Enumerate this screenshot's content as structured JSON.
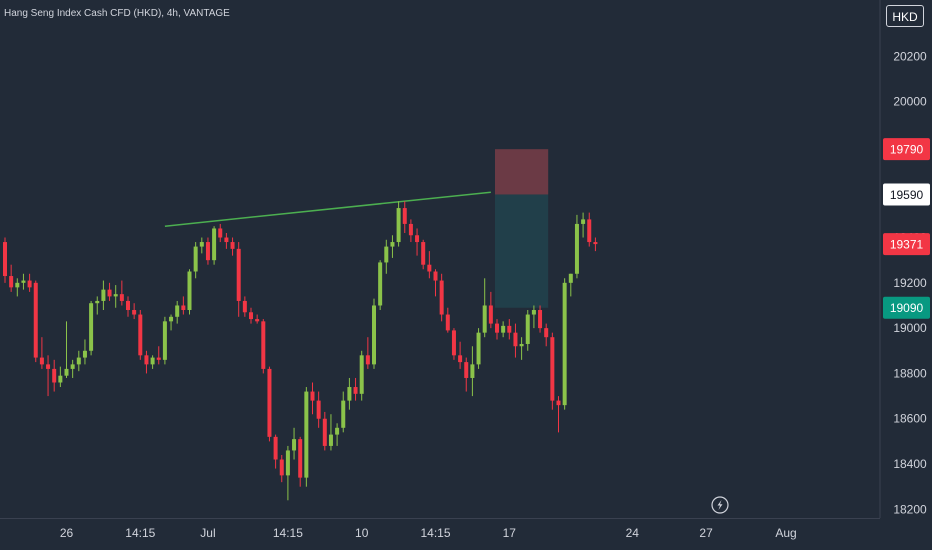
{
  "header": {
    "title": "Hang Seng Index Cash CFD (HKD), 4h, VANTAGE",
    "currency": "HKD"
  },
  "chart_data": {
    "type": "candlestick",
    "ylim": [
      18100,
      20400
    ],
    "y_ticks": [
      18200,
      18400,
      18600,
      18800,
      19000,
      19200,
      19400,
      19600,
      19800,
      20000,
      20200
    ],
    "x_ticks": [
      {
        "label": "26",
        "bar": 10
      },
      {
        "label": "14:15",
        "bar": 22
      },
      {
        "label": "Jul",
        "bar": 33
      },
      {
        "label": "14:15",
        "bar": 46
      },
      {
        "label": "10",
        "bar": 58
      },
      {
        "label": "14:15",
        "bar": 70
      },
      {
        "label": "17",
        "bar": 82
      },
      {
        "label": "24",
        "bar": 102
      },
      {
        "label": "27",
        "bar": 114
      },
      {
        "label": "Aug",
        "bar": 127
      }
    ],
    "candles": [
      [
        19380,
        19400,
        19200,
        19230
      ],
      [
        19230,
        19280,
        19160,
        19180
      ],
      [
        19180,
        19220,
        19140,
        19200
      ],
      [
        19200,
        19240,
        19170,
        19210
      ],
      [
        19210,
        19240,
        19160,
        19180
      ],
      [
        19200,
        19210,
        18850,
        18870
      ],
      [
        18870,
        18960,
        18820,
        18840
      ],
      [
        18840,
        18880,
        18700,
        18820
      ],
      [
        18820,
        18860,
        18720,
        18760
      ],
      [
        18760,
        18830,
        18740,
        18790
      ],
      [
        18790,
        19030,
        18780,
        18820
      ],
      [
        18820,
        18860,
        18780,
        18840
      ],
      [
        18840,
        18900,
        18810,
        18870
      ],
      [
        18870,
        18950,
        18840,
        18900
      ],
      [
        18900,
        19120,
        18880,
        19110
      ],
      [
        19110,
        19140,
        19060,
        19120
      ],
      [
        19120,
        19210,
        19080,
        19170
      ],
      [
        19170,
        19200,
        19120,
        19140
      ],
      [
        19140,
        19190,
        19090,
        19150
      ],
      [
        19150,
        19210,
        19100,
        19120
      ],
      [
        19120,
        19140,
        19050,
        19080
      ],
      [
        19080,
        19110,
        19040,
        19060
      ],
      [
        19060,
        19080,
        18860,
        18880
      ],
      [
        18880,
        18900,
        18800,
        18840
      ],
      [
        18840,
        18880,
        18820,
        18870
      ],
      [
        18870,
        18920,
        18840,
        18860
      ],
      [
        18860,
        19050,
        18840,
        19030
      ],
      [
        19030,
        19060,
        18990,
        19050
      ],
      [
        19050,
        19120,
        19020,
        19100
      ],
      [
        19100,
        19140,
        19060,
        19080
      ],
      [
        19080,
        19260,
        19060,
        19250
      ],
      [
        19250,
        19380,
        19220,
        19360
      ],
      [
        19360,
        19400,
        19330,
        19380
      ],
      [
        19380,
        19400,
        19280,
        19300
      ],
      [
        19300,
        19450,
        19280,
        19440
      ],
      [
        19440,
        19460,
        19380,
        19400
      ],
      [
        19400,
        19420,
        19350,
        19380
      ],
      [
        19380,
        19400,
        19320,
        19350
      ],
      [
        19350,
        19380,
        19050,
        19120
      ],
      [
        19120,
        19140,
        19050,
        19070
      ],
      [
        19070,
        19090,
        19020,
        19040
      ],
      [
        19040,
        19060,
        19020,
        19030
      ],
      [
        19030,
        19040,
        18800,
        18820
      ],
      [
        18820,
        18830,
        18500,
        18520
      ],
      [
        18520,
        18530,
        18380,
        18420
      ],
      [
        18420,
        18440,
        18320,
        18350
      ],
      [
        18350,
        18480,
        18240,
        18460
      ],
      [
        18460,
        18560,
        18420,
        18510
      ],
      [
        18510,
        18520,
        18300,
        18340
      ],
      [
        18340,
        18740,
        18300,
        18720
      ],
      [
        18720,
        18760,
        18620,
        18680
      ],
      [
        18680,
        18720,
        18560,
        18600
      ],
      [
        18600,
        18630,
        18460,
        18480
      ],
      [
        18480,
        18620,
        18460,
        18530
      ],
      [
        18530,
        18580,
        18480,
        18560
      ],
      [
        18560,
        18720,
        18540,
        18680
      ],
      [
        18680,
        18780,
        18640,
        18740
      ],
      [
        18740,
        18780,
        18680,
        18710
      ],
      [
        18710,
        18900,
        18680,
        18880
      ],
      [
        18880,
        18960,
        18820,
        18840
      ],
      [
        18840,
        19130,
        18820,
        19100
      ],
      [
        19100,
        19300,
        19080,
        19290
      ],
      [
        19290,
        19390,
        19240,
        19360
      ],
      [
        19360,
        19410,
        19310,
        19380
      ],
      [
        19380,
        19560,
        19360,
        19530
      ],
      [
        19530,
        19560,
        19420,
        19460
      ],
      [
        19460,
        19480,
        19380,
        19410
      ],
      [
        19410,
        19440,
        19320,
        19380
      ],
      [
        19380,
        19390,
        19260,
        19280
      ],
      [
        19280,
        19340,
        19220,
        19250
      ],
      [
        19250,
        19260,
        19140,
        19210
      ],
      [
        19210,
        19240,
        19030,
        19060
      ],
      [
        19060,
        19090,
        18980,
        18990
      ],
      [
        18990,
        19000,
        18860,
        18880
      ],
      [
        18880,
        18940,
        18820,
        18850
      ],
      [
        18850,
        18870,
        18720,
        18780
      ],
      [
        18780,
        18920,
        18700,
        18840
      ],
      [
        18840,
        19000,
        18820,
        18980
      ],
      [
        18980,
        19220,
        18960,
        19100
      ],
      [
        19100,
        19160,
        19000,
        19020
      ],
      [
        19020,
        19040,
        18950,
        18980
      ],
      [
        18980,
        19030,
        18960,
        19010
      ],
      [
        19010,
        19040,
        18950,
        18980
      ],
      [
        18980,
        19020,
        18870,
        18920
      ],
      [
        18920,
        18960,
        18860,
        18930
      ],
      [
        18930,
        19080,
        18900,
        19060
      ],
      [
        19060,
        19100,
        19000,
        19080
      ],
      [
        19080,
        19100,
        18980,
        19000
      ],
      [
        19000,
        19020,
        18920,
        18960
      ],
      [
        18960,
        18980,
        18640,
        18680
      ],
      [
        18680,
        18700,
        18540,
        18660
      ],
      [
        18660,
        19220,
        18640,
        19200
      ],
      [
        19200,
        19240,
        19140,
        19240
      ],
      [
        19240,
        19500,
        19220,
        19460
      ],
      [
        19460,
        19510,
        19400,
        19480
      ],
      [
        19480,
        19510,
        19360,
        19380
      ],
      [
        19380,
        19400,
        19340,
        19371
      ]
    ],
    "trendline": {
      "from_bar": 26,
      "from_price": 19450,
      "to_bar": 79,
      "to_price": 19600
    },
    "position": {
      "start_bar": 80,
      "end_bar": 88,
      "entry": 19590,
      "stop": 19790,
      "target": 19090
    },
    "price_tags": [
      {
        "value": "19790",
        "price": 19790,
        "bg": "#f23645",
        "fg": "#ffffff"
      },
      {
        "value": "19590",
        "price": 19590,
        "bg": "#ffffff",
        "fg": "#131722"
      },
      {
        "value": "19371",
        "price": 19371,
        "bg": "#f23645",
        "fg": "#ffffff"
      },
      {
        "value": "19090",
        "price": 19090,
        "bg": "#089981",
        "fg": "#ffffff"
      }
    ],
    "colors": {
      "up": "#8bc34a",
      "down": "#f23645",
      "trendline": "#4caf50",
      "stop_zone": "#6b3a45",
      "target_zone": "#213f4a",
      "background": "#222b38"
    }
  }
}
